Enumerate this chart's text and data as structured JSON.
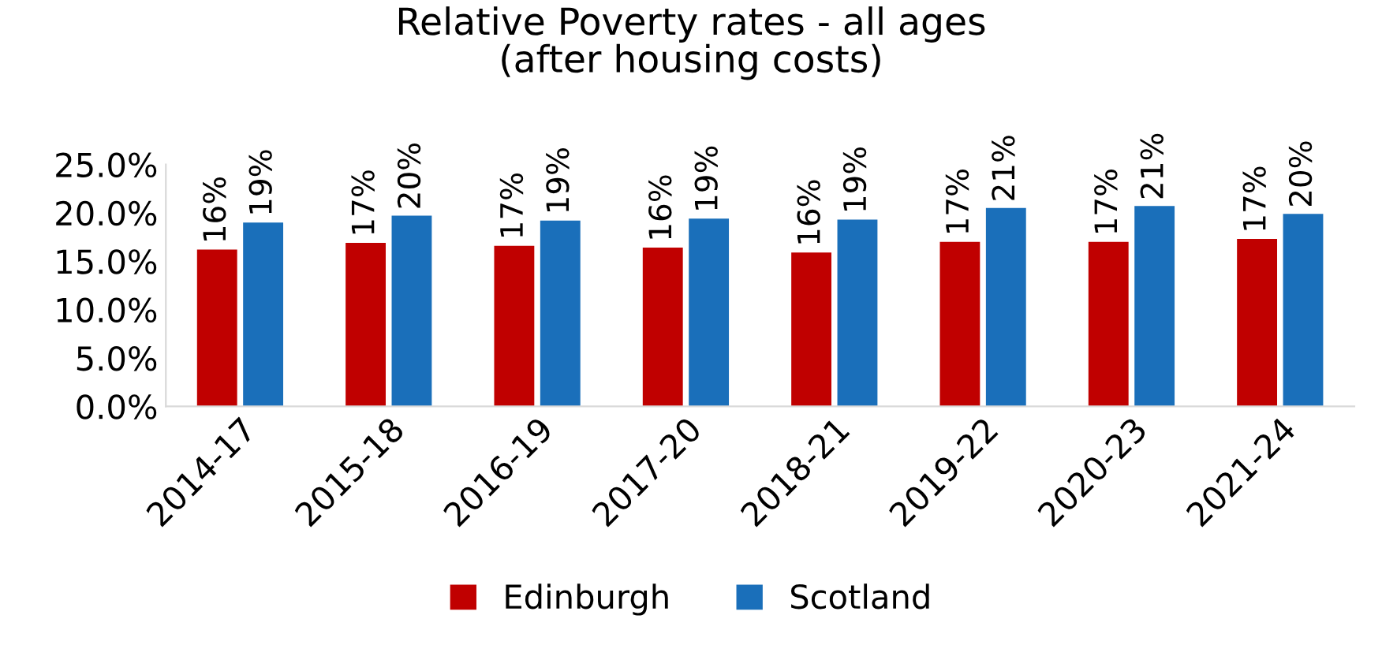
{
  "chart_data": {
    "type": "bar",
    "title": "Relative Poverty rates - all ages\n(after housing costs)",
    "categories": [
      "2014-17",
      "2015-18",
      "2016-19",
      "2017-20",
      "2018-21",
      "2019-22",
      "2020-23",
      "2021-24"
    ],
    "series": [
      {
        "name": "Edinburgh",
        "color": "#c00000",
        "values": [
          16.2,
          16.9,
          16.6,
          16.4,
          15.9,
          17.0,
          17.0,
          17.3
        ],
        "value_labels": [
          "16%",
          "17%",
          "17%",
          "16%",
          "16%",
          "17%",
          "17%",
          "17%"
        ]
      },
      {
        "name": "Scotland",
        "color": "#1a6fba",
        "values": [
          19.0,
          19.7,
          19.2,
          19.4,
          19.3,
          20.5,
          20.7,
          19.9
        ],
        "value_labels": [
          "19%",
          "20%",
          "19%",
          "19%",
          "19%",
          "21%",
          "21%",
          "20%"
        ]
      }
    ],
    "ylim": [
      0,
      25
    ],
    "yticks": [
      {
        "value": 0,
        "label": "0.0%"
      },
      {
        "value": 5,
        "label": "5.0%"
      },
      {
        "value": 10,
        "label": "10.0%"
      },
      {
        "value": 15,
        "label": "15.0%"
      },
      {
        "value": 20,
        "label": "20.0%"
      },
      {
        "value": 25,
        "label": "25.0%"
      }
    ],
    "grid": false,
    "legend": "bottom"
  }
}
